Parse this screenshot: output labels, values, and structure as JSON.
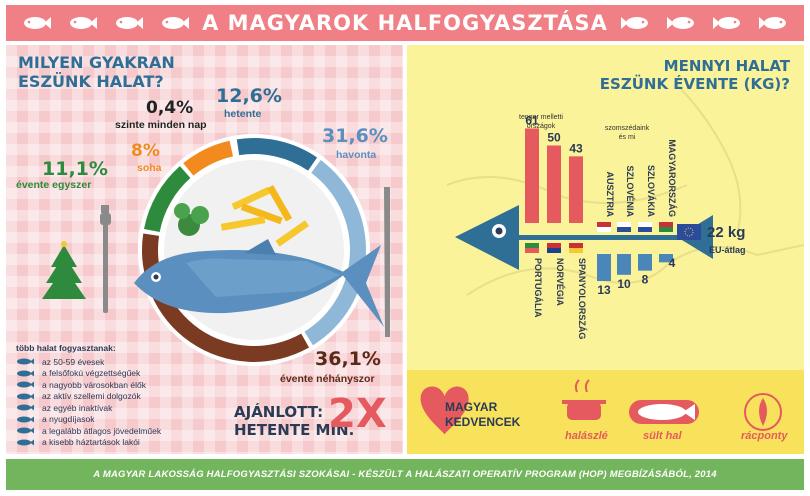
{
  "header": {
    "title": "A MAGYAROK HALFOGYASZTÁSA"
  },
  "left": {
    "question": "MILYEN GYAKRAN EZSÜNK HALAT?",
    "question_line1": "MILYEN GYAKRAN",
    "question_line2": "ESZÜNK HALAT?",
    "list_heading": "több halat fogyasztanak:",
    "list_items": [
      "az 50-59 évesek",
      "a felsőfokú végzettségűek",
      "a nagyobb városokban élők",
      "az aktív szellemi dolgozók",
      "az egyéb inaktívak",
      "a nyugdíjasok",
      "a legalább átlagos jövedelműek",
      "a kisebb háztartások lakói"
    ],
    "recommend_line1": "AJÁNLOTT:",
    "recommend_line2": "HETENTE MIN.",
    "recommend_value": "2X"
  },
  "chart_data": [
    {
      "type": "pie",
      "title": "MILYEN GYAKRAN ESZÜNK HALAT?",
      "categories": [
        "szinte minden nap",
        "hetente",
        "havonta",
        "évente néhányszor",
        "évente egyszer",
        "soha"
      ],
      "values": [
        0.4,
        12.6,
        31.6,
        36.1,
        11.1,
        8
      ],
      "value_labels": [
        "0,4%",
        "12,6%",
        "31,6%",
        "36,1%",
        "11,1%",
        "8%"
      ],
      "colors": [
        "#333333",
        "#2f6e95",
        "#8fb8d8",
        "#7a3b22",
        "#2e8b3d",
        "#f28a1e"
      ]
    },
    {
      "type": "bar",
      "title": "MENNYI HALAT ESZÜNK ÉVENTE (KG)?",
      "groups": [
        "tenger melletti országok",
        "szomszédaink és mi"
      ],
      "categories": [
        "PORTUGÁLIA",
        "NORVÉGIA",
        "SPANYOLORSZÁG",
        "AUSZTRIA",
        "SZLOVÉNIA",
        "SZLOVÁKIA",
        "MAGYARORSZÁG"
      ],
      "values": [
        61,
        50,
        43,
        13,
        10,
        8,
        4
      ],
      "value_labels": [
        "61",
        "50",
        "43",
        "13",
        "10",
        "8",
        "4"
      ],
      "reference": {
        "value": 22,
        "label": "22 kg",
        "name": "EU-átlag"
      }
    }
  ],
  "right": {
    "question_line1": "MENNYI HALAT",
    "question_line2": "ESZÜNK ÉVENTE (KG)?",
    "group1_line1": "tenger melletti",
    "group1_line2": "országok",
    "group2_line1": "szomszédaink",
    "group2_line2": "és mi",
    "eu_value": "22 kg",
    "eu_label": "EU-átlag",
    "favorites_line1": "MAGYAR",
    "favorites_line2": "KEDVENCEK",
    "dishes": [
      "halászlé",
      "sült hal",
      "rácponty"
    ]
  },
  "footer": {
    "text": "A MAGYAR LAKOSSÁG HALFOGYASZTÁSI SZOKÁSAI - KÉSZÜLT A HALÁSZATI OPERATÍV PROGRAM (HOP) MEGBÍZÁSÁBÓL, 2014"
  },
  "colors": {
    "header": "#f07f86",
    "left_bg": "#f6c9cc",
    "right_bg": "#faf39a",
    "bar_red": "#e45a5f",
    "bar_blue": "#4a86b8",
    "footer": "#73b55c",
    "navy": "#2b3a55"
  }
}
